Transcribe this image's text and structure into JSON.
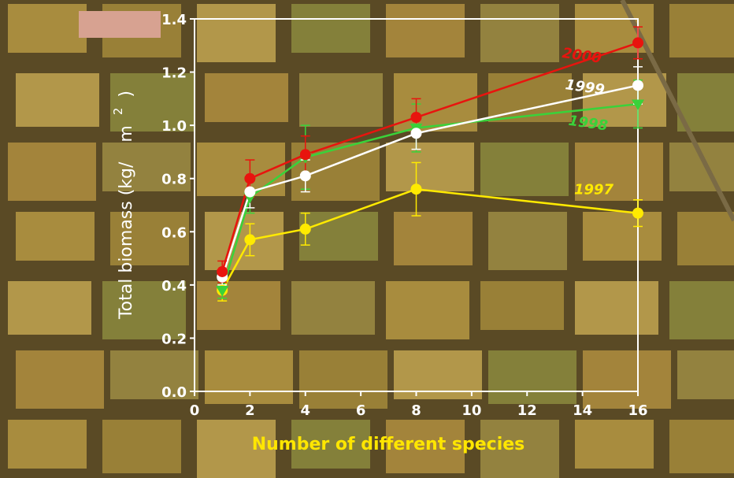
{
  "chart_data": {
    "type": "line",
    "xlabel": "Number of different species",
    "ylabel_parts": [
      "Total biomass (kg/",
      "m",
      "2",
      ")"
    ],
    "xlim": [
      0,
      16
    ],
    "ylim": [
      0,
      1.4
    ],
    "x_ticks": [
      "0",
      "2",
      "4",
      "6",
      "8",
      "10",
      "12",
      "14",
      "16"
    ],
    "y_ticks": [
      "0.0",
      "0.2",
      "0.4",
      "0.6",
      "0.8",
      "1.0",
      "1.2",
      "1.4"
    ],
    "grid": false,
    "x": [
      1,
      2,
      4,
      8,
      16
    ],
    "series": [
      {
        "name": "2000",
        "color": "#e8140e",
        "marker": "circle",
        "values": [
          0.45,
          0.8,
          0.89,
          1.03,
          1.31
        ],
        "err": [
          0.04,
          0.07,
          0.07,
          0.07,
          0.06
        ]
      },
      {
        "name": "1999",
        "color": "#ffffff",
        "marker": "circle",
        "values": [
          0.43,
          0.75,
          0.81,
          0.97,
          1.15
        ],
        "err": [
          0.03,
          0.06,
          0.06,
          0.06,
          0.07
        ]
      },
      {
        "name": "1998",
        "color": "#3ad23a",
        "marker": "triangle-down",
        "values": [
          0.38,
          0.73,
          0.88,
          0.99,
          1.08
        ],
        "err": [
          0.03,
          0.06,
          0.12,
          0.09,
          0.09
        ]
      },
      {
        "name": "1997",
        "color": "#ffea00",
        "marker": "circle",
        "values": [
          0.38,
          0.57,
          0.61,
          0.76,
          0.67
        ],
        "err": [
          0.04,
          0.06,
          0.06,
          0.1,
          0.05
        ]
      }
    ],
    "colors": {
      "axes": "#ffffff",
      "xlabel": "#ffe600",
      "ground_dark": "#5a4a25",
      "plot_light": "#b89a45",
      "plot_green": "#8a8a3a"
    }
  }
}
